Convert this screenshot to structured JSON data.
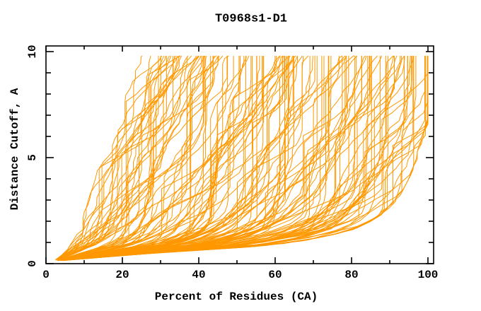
{
  "chart_data": {
    "type": "line",
    "title": "T0968s1-D1",
    "xlabel": "Percent of Residues (CA)",
    "ylabel": "Distance Cutoff, A",
    "xlim": [
      0,
      101.5
    ],
    "ylim": [
      0,
      10.27
    ],
    "x_major_ticks": [
      0,
      20,
      40,
      60,
      80,
      100
    ],
    "x_minor_ticks": [
      10,
      30,
      50,
      70,
      90
    ],
    "y_major_ticks": [
      0,
      5,
      10
    ],
    "y_minor_ticks": [
      1,
      2,
      3,
      4,
      6,
      7,
      8,
      9
    ],
    "grid": false,
    "legend": null,
    "background_color": "#ffffff",
    "axis_color": "#000000",
    "series_color": "#FF9800",
    "description": "CASP GDT plot for target T0968s1-D1: each orange curve is one predicted model; x = percent of CA residues within the distance cutoff y. Curves fan out from about (4%, 0.2A); best models hug the lower right, worst hug the upper left.",
    "n_series": 148,
    "seed": 968101,
    "y_start": 0.14,
    "y_end": 9.8,
    "y_step": 0.32,
    "envelope_best": [
      [
        3,
        0.12
      ],
      [
        14,
        0.3
      ],
      [
        32,
        0.55
      ],
      [
        48,
        0.72
      ],
      [
        58,
        0.85
      ],
      [
        70,
        1.15
      ],
      [
        80,
        1.6
      ],
      [
        86,
        2.1
      ],
      [
        90,
        2.7
      ],
      [
        93,
        3.3
      ],
      [
        95.5,
        4.2
      ],
      [
        97.5,
        5.3
      ],
      [
        99,
        6.1
      ],
      [
        100,
        6.8
      ]
    ],
    "envelope_worst": [
      [
        2.5,
        0.12
      ],
      [
        6,
        0.7
      ],
      [
        8,
        1.4
      ],
      [
        10,
        2.4
      ],
      [
        12,
        3.5
      ],
      [
        14,
        4.6
      ],
      [
        16,
        5.6
      ],
      [
        18.5,
        6.8
      ],
      [
        21,
        8.0
      ],
      [
        23.5,
        9.1
      ],
      [
        25,
        9.8
      ]
    ]
  }
}
